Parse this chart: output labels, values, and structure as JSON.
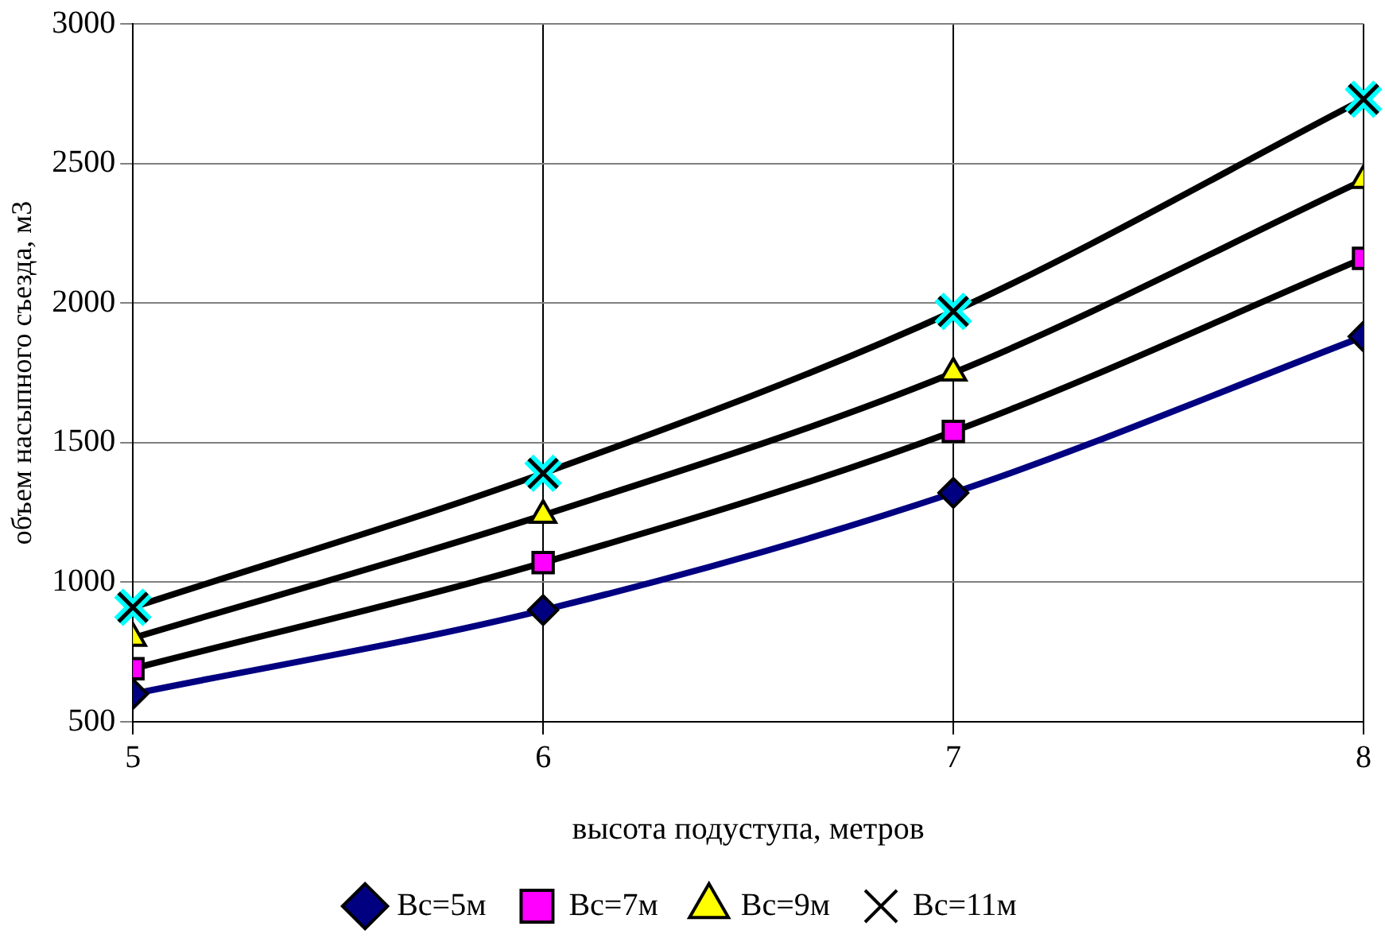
{
  "chart_data": {
    "type": "line",
    "xlabel": "высота подуступа, метров",
    "ylabel": "объем насыпного съезда, м3",
    "x": [
      5,
      6,
      7,
      8
    ],
    "xlim": [
      5,
      8
    ],
    "xticks": [
      5,
      6,
      7,
      8
    ],
    "ylim": [
      500,
      3000
    ],
    "yticks": [
      500,
      1000,
      1500,
      2000,
      2500,
      3000
    ],
    "grid": true,
    "legend": "bottom",
    "series": [
      {
        "name": "Bc=5м",
        "color": "#000080",
        "marker": "diamond",
        "values": [
          600,
          900,
          1320,
          1880
        ]
      },
      {
        "name": "Bc=7м",
        "color": "#ff00ff",
        "marker": "square",
        "values": [
          690,
          1070,
          1540,
          2160
        ]
      },
      {
        "name": "Bc=9м",
        "color": "#ffff00",
        "marker": "triangle",
        "values": [
          800,
          1240,
          1750,
          2440
        ]
      },
      {
        "name": "Bc=11м",
        "color": "#00ffff",
        "marker": "cross",
        "values": [
          910,
          1390,
          1970,
          2730
        ]
      }
    ]
  }
}
